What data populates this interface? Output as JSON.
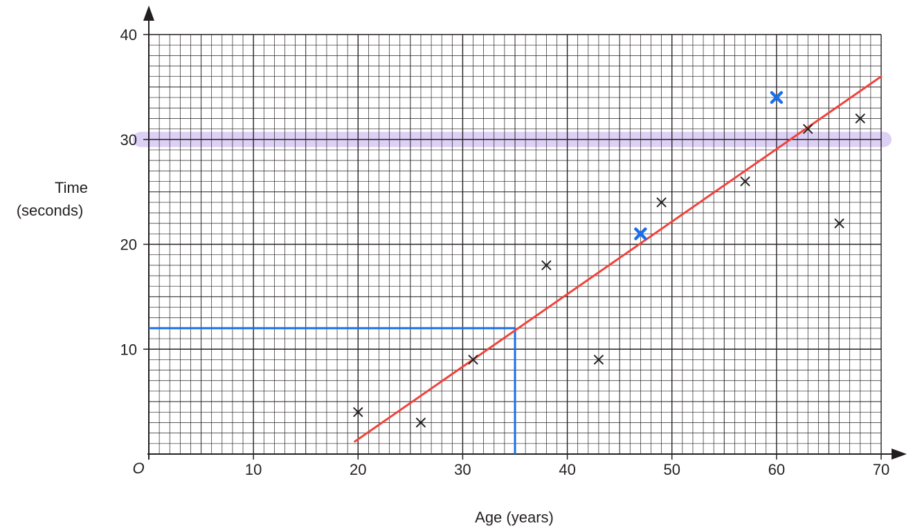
{
  "chart_data": {
    "type": "scatter",
    "title": "",
    "xlabel": "Age (years)",
    "ylabel": [
      "Time",
      "(seconds)"
    ],
    "origin_label": "O",
    "xlim": [
      0,
      70
    ],
    "ylim": [
      0,
      40
    ],
    "x_ticks": [
      10,
      20,
      30,
      40,
      50,
      60,
      70
    ],
    "y_ticks": [
      10,
      20,
      30,
      40
    ],
    "grid": true,
    "minor_grid_step": 1,
    "major_grid_step": 10,
    "series": [
      {
        "marker": "cross",
        "color": "#231f20",
        "points": [
          {
            "x": 20,
            "y": 4
          },
          {
            "x": 26,
            "y": 3
          },
          {
            "x": 31,
            "y": 9
          },
          {
            "x": 38,
            "y": 18
          },
          {
            "x": 43,
            "y": 9
          },
          {
            "x": 49,
            "y": 24
          },
          {
            "x": 57,
            "y": 26
          },
          {
            "x": 63,
            "y": 31
          },
          {
            "x": 66,
            "y": 22
          },
          {
            "x": 68,
            "y": 32
          }
        ]
      },
      {
        "marker": "cross",
        "color": "#1a6fe8",
        "points": [
          {
            "x": 47,
            "y": 21
          },
          {
            "x": 60,
            "y": 34
          }
        ]
      }
    ],
    "line_of_best_fit": {
      "color": "#f0433a",
      "from": {
        "x": 19.7,
        "y": 1.2
      },
      "to": {
        "x": 70,
        "y": 36
      }
    },
    "reading_lines": {
      "color": "#1a6fe8",
      "x": 35,
      "y": 12
    },
    "highlight_band": {
      "color": "#d8c8f4",
      "y": 30
    }
  }
}
